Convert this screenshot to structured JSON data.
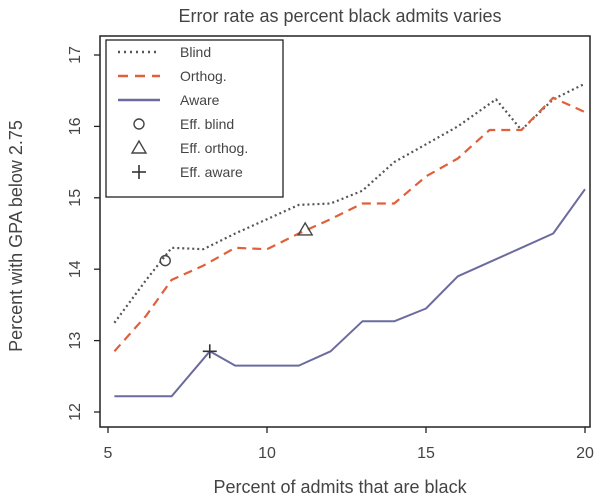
{
  "chart_data": {
    "type": "line",
    "title": "Error rate as percent black admits varies",
    "xlabel": "Percent of admits that are black",
    "ylabel": "Percent with GPA below 2.75",
    "xlim": [
      5,
      20
    ],
    "ylim": [
      12,
      17
    ],
    "xticks": [
      5,
      10,
      15,
      20
    ],
    "yticks": [
      12,
      13,
      14,
      15,
      16,
      17
    ],
    "xtick_labels": [
      "5",
      "10",
      "15",
      "20"
    ],
    "ytick_labels": [
      "12",
      "13",
      "14",
      "15",
      "16",
      "17"
    ],
    "grid": false,
    "legend_position": "top-left",
    "series": [
      {
        "name": "Blind",
        "style": "dotted",
        "color": "#555555",
        "x": [
          5.2,
          6.2,
          7.0,
          8.0,
          9.0,
          10.0,
          11.0,
          12.0,
          13.0,
          14.0,
          15.0,
          16.0,
          17.2,
          18.0,
          19.0,
          20.0
        ],
        "y": [
          13.25,
          13.85,
          14.3,
          14.28,
          14.5,
          14.7,
          14.9,
          14.92,
          15.1,
          15.5,
          15.75,
          16.0,
          16.38,
          15.95,
          16.38,
          16.6
        ]
      },
      {
        "name": "Orthog.",
        "style": "dashed",
        "color": "#e0603c",
        "x": [
          5.2,
          6.2,
          7.0,
          8.0,
          9.0,
          10.0,
          11.0,
          12.0,
          13.0,
          14.0,
          15.0,
          16.0,
          17.0,
          18.0,
          19.0,
          20.0
        ],
        "y": [
          12.85,
          13.35,
          13.85,
          14.05,
          14.3,
          14.28,
          14.5,
          14.7,
          14.92,
          14.92,
          15.3,
          15.55,
          15.95,
          15.95,
          16.4,
          16.2
        ]
      },
      {
        "name": "Aware",
        "style": "solid",
        "color": "#6b6b9e",
        "x": [
          5.2,
          6.0,
          7.0,
          8.2,
          9.0,
          10.0,
          11.0,
          12.0,
          13.0,
          14.0,
          15.0,
          16.0,
          17.0,
          18.0,
          19.0,
          20.0
        ],
        "y": [
          12.22,
          12.22,
          12.22,
          12.85,
          12.65,
          12.65,
          12.65,
          12.85,
          13.27,
          13.27,
          13.45,
          13.9,
          14.1,
          14.3,
          14.5,
          15.12
        ]
      }
    ],
    "points": [
      {
        "name": "Eff. blind",
        "marker": "circle",
        "x": 6.8,
        "y": 14.12
      },
      {
        "name": "Eff. orthog.",
        "marker": "triangle",
        "x": 11.2,
        "y": 14.55
      },
      {
        "name": "Eff. aware",
        "marker": "plus",
        "x": 8.2,
        "y": 12.85
      }
    ],
    "legend": [
      "Blind",
      "Orthog.",
      "Aware",
      "Eff. blind",
      "Eff. orthog.",
      "Eff. aware"
    ]
  }
}
